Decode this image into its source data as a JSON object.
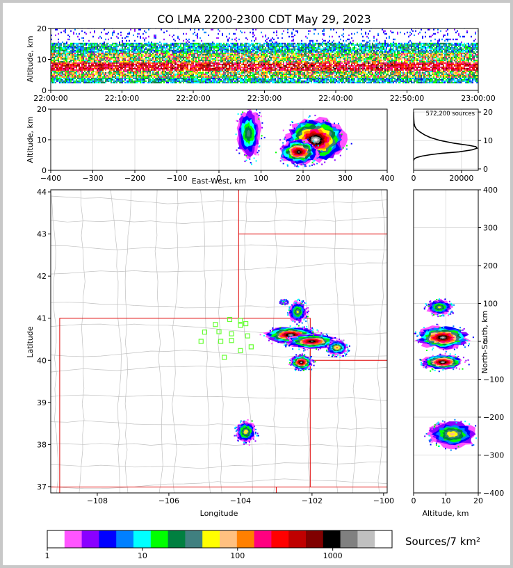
{
  "title": "CO LMA 2200-2300 CDT May 29, 2023",
  "colors": {
    "frame_bg": "#c8c8c8",
    "state_border": "#e00000",
    "county_border": "#c0c0c0",
    "station_marker": "#66ff33",
    "grid": "#dddddd"
  },
  "colormap": [
    "#ff55ff",
    "#8a00ff",
    "#0000ff",
    "#0080ff",
    "#00ffff",
    "#00ff00",
    "#008040",
    "#408080",
    "#ffff00",
    "#ffc080",
    "#ff8000",
    "#ff0080",
    "#ff0000",
    "#c00000",
    "#800000",
    "#000000",
    "#808080",
    "#c0c0c0",
    "#ffffff"
  ],
  "chart_data": [
    {
      "id": "altitude_time",
      "type": "heatmap",
      "xlabel": "",
      "ylabel": "Altitude, km",
      "x_ticks": [
        "22:00:00",
        "22:10:00",
        "22:20:00",
        "22:30:00",
        "22:40:00",
        "22:50:00",
        "23:00:00"
      ],
      "xlim": [
        "22:00:00",
        "23:00:00"
      ],
      "ylim": [
        0,
        20
      ],
      "y_ticks": [
        0,
        10,
        20
      ],
      "density_bands": [
        {
          "alt_range": [
            2,
            4
          ],
          "level": "low"
        },
        {
          "alt_range": [
            4,
            6
          ],
          "level": "medium"
        },
        {
          "alt_range": [
            6,
            9
          ],
          "level": "high"
        },
        {
          "alt_range": [
            9,
            12
          ],
          "level": "medium"
        },
        {
          "alt_range": [
            12,
            15
          ],
          "level": "low"
        },
        {
          "alt_range": [
            15,
            20
          ],
          "level": "sparse"
        }
      ]
    },
    {
      "id": "east_west_altitude",
      "type": "heatmap",
      "xlabel": "East-West, km",
      "ylabel": "Altitude, km",
      "xlim": [
        -400,
        400
      ],
      "x_ticks": [
        -400,
        -300,
        -200,
        -100,
        0,
        100,
        200,
        300,
        400
      ],
      "ylim": [
        0,
        20
      ],
      "y_ticks": [
        0,
        10,
        20
      ],
      "clusters": [
        {
          "x": 70,
          "y": 12,
          "w": 60,
          "h": 16,
          "peak": 7
        },
        {
          "x": 230,
          "y": 10,
          "w": 140,
          "h": 14,
          "peak": 18
        },
        {
          "x": 190,
          "y": 6,
          "w": 90,
          "h": 8,
          "peak": 16
        }
      ]
    },
    {
      "id": "altitude_histogram",
      "type": "line",
      "annotation": "572,200 sources",
      "xlim": [
        0,
        27000
      ],
      "x_ticks": [
        0,
        20000
      ],
      "ylim": [
        -0.5,
        21
      ],
      "y_ticks": [
        0,
        10,
        20
      ],
      "x": [
        0,
        300,
        1200,
        3500,
        7000,
        12000,
        19000,
        24500,
        26500,
        26000,
        23000,
        17000,
        11000,
        7000,
        4500,
        2600,
        1200,
        500,
        200,
        80,
        0
      ],
      "y": [
        3,
        3.5,
        4,
        4.5,
        5,
        5.5,
        6,
        6.7,
        7.3,
        7.8,
        8.3,
        9,
        10,
        11,
        12,
        13,
        14,
        15,
        16,
        17.5,
        20
      ]
    },
    {
      "id": "plan_view",
      "type": "heatmap",
      "xlabel": "Longitude",
      "ylabel": "Latitude",
      "xlim": [
        -109.3,
        -99.9
      ],
      "ylim": [
        36.85,
        44.05
      ],
      "x_ticks": [
        -108,
        -106,
        -104,
        -102,
        -100
      ],
      "y_ticks": [
        37,
        38,
        39,
        40,
        41,
        42,
        43,
        44
      ],
      "stations": [
        [
          -104.7,
          40.85
        ],
        [
          -104.3,
          40.97
        ],
        [
          -104.0,
          40.95
        ],
        [
          -103.85,
          40.87
        ],
        [
          -104.0,
          40.83
        ],
        [
          -105.0,
          40.67
        ],
        [
          -104.6,
          40.68
        ],
        [
          -104.25,
          40.63
        ],
        [
          -103.8,
          40.58
        ],
        [
          -105.1,
          40.45
        ],
        [
          -104.55,
          40.45
        ],
        [
          -104.25,
          40.47
        ],
        [
          -103.7,
          40.32
        ],
        [
          -104.0,
          40.23
        ],
        [
          -104.45,
          40.07
        ]
      ],
      "clusters": [
        {
          "lon": -102.4,
          "lat": 41.15,
          "w": 0.5,
          "h": 0.5,
          "peak": 8
        },
        {
          "lon": -102.6,
          "lat": 40.6,
          "w": 1.4,
          "h": 0.4,
          "peak": 17
        },
        {
          "lon": -102.0,
          "lat": 40.45,
          "w": 1.4,
          "h": 0.35,
          "peak": 16
        },
        {
          "lon": -101.3,
          "lat": 40.3,
          "w": 0.6,
          "h": 0.35,
          "peak": 10
        },
        {
          "lon": -102.3,
          "lat": 39.95,
          "w": 0.6,
          "h": 0.35,
          "peak": 17
        },
        {
          "lon": -103.85,
          "lat": 38.3,
          "w": 0.55,
          "h": 0.5,
          "peak": 9
        },
        {
          "lon": -102.8,
          "lat": 41.4,
          "w": 0.2,
          "h": 0.1,
          "peak": 5
        }
      ]
    },
    {
      "id": "north_south_altitude",
      "type": "heatmap",
      "xlabel": "Altitude, km",
      "ylabel": "North-South, km",
      "xlim": [
        0,
        20
      ],
      "x_ticks": [
        0,
        10,
        20
      ],
      "ylim": [
        -400,
        400
      ],
      "y_ticks": [
        -400,
        -300,
        -200,
        -100,
        0,
        100,
        200,
        300,
        400
      ],
      "clusters": [
        {
          "x": 8,
          "y": 90,
          "w": 8,
          "h": 40,
          "peak": 8
        },
        {
          "x": 9,
          "y": 10,
          "w": 16,
          "h": 60,
          "peak": 17
        },
        {
          "x": 9,
          "y": -55,
          "w": 13,
          "h": 40,
          "peak": 17
        },
        {
          "x": 12,
          "y": -245,
          "w": 15,
          "h": 70,
          "peak": 9
        }
      ]
    }
  ],
  "colorbar": {
    "label": "Sources/7 km²",
    "tick_labels": [
      "1",
      "10",
      "100",
      "1000"
    ],
    "log_range": [
      1,
      4200
    ]
  }
}
